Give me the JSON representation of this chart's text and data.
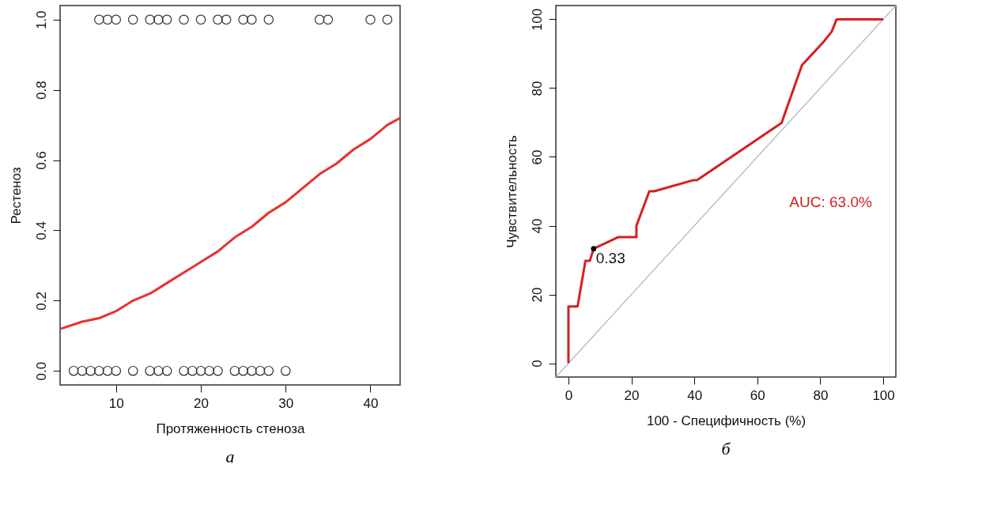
{
  "chart_data": [
    {
      "type": "scatter",
      "title": "а",
      "xlabel": "Протяженность стеноза",
      "ylabel": "Рестеноз",
      "xlim": [
        3.4,
        43.5
      ],
      "ylim": [
        -0.04,
        1.04
      ],
      "xticks": [
        10,
        20,
        30,
        40
      ],
      "yticks": [
        {
          "value": 0,
          "label": "0.0"
        },
        0.2,
        0.4,
        0.6,
        0.8,
        {
          "value": 1,
          "label": "1.0"
        }
      ],
      "grid": false,
      "series": [
        {
          "marker": "circle",
          "color": "#333333",
          "x": [
            8,
            9,
            10,
            12,
            14,
            15,
            16,
            18,
            20,
            22,
            23,
            25,
            26,
            28,
            34,
            35,
            40,
            42,
            5,
            6,
            7,
            8,
            9,
            10,
            12,
            14,
            15,
            16,
            18,
            19,
            20,
            21,
            22,
            24,
            25,
            26,
            27,
            28,
            30
          ],
          "values": [
            1,
            1,
            1,
            1,
            1,
            1,
            1,
            1,
            1,
            1,
            1,
            1,
            1,
            1,
            1,
            1,
            1,
            1,
            0,
            0,
            0,
            0,
            0,
            0,
            0,
            0,
            0,
            0,
            0,
            0,
            0,
            0,
            0,
            0,
            0,
            0,
            0,
            0,
            0
          ]
        },
        {
          "type": "line",
          "color": "#e8312f",
          "line_style": "solid",
          "x": [
            3.5,
            6,
            8,
            10,
            12,
            14,
            16,
            18,
            20,
            22,
            24,
            26,
            28,
            30,
            32,
            34,
            36,
            38,
            40,
            42,
            43.5
          ],
          "values": [
            0.12,
            0.14,
            0.15,
            0.17,
            0.2,
            0.22,
            0.25,
            0.28,
            0.31,
            0.34,
            0.38,
            0.41,
            0.45,
            0.48,
            0.52,
            0.56,
            0.59,
            0.63,
            0.66,
            0.7,
            0.72
          ]
        }
      ]
    },
    {
      "type": "line",
      "title": "б",
      "xlabel": "100 - Специфичность (%)",
      "ylabel": "Чувствительность",
      "xlim": [
        -4,
        104
      ],
      "ylim": [
        -4,
        104
      ],
      "xticks": [
        0,
        20,
        40,
        60,
        80,
        100
      ],
      "yticks": [
        0,
        20,
        40,
        60,
        80,
        100
      ],
      "grid": false,
      "annotations": [
        {
          "text": "0.33",
          "x": 8.0,
          "y": 33.3
        },
        "AUC: 63.0%"
      ],
      "series": [
        {
          "color": "#bebebe",
          "line_style": "solid",
          "x": [
            -4,
            104
          ],
          "values": [
            -4,
            104
          ]
        },
        {
          "color": "#d42020",
          "line_style": "solid",
          "x": [
            0,
            0,
            2.9,
            5.4,
            6.8,
            8.0,
            15.9,
            21.6,
            21.6,
            25.7,
            27.2,
            39.5,
            40.9,
            67.7,
            74.2,
            81.1,
            83.6,
            85.2,
            100
          ],
          "values": [
            0,
            16.5,
            16.5,
            29.8,
            29.8,
            33.3,
            36.7,
            36.7,
            40,
            50,
            50,
            53.2,
            53.3,
            69.9,
            86.7,
            93.5,
            96.4,
            100,
            100
          ]
        },
        {
          "type": "scatter",
          "marker": "circle",
          "color": "#000000",
          "x": [
            8.0
          ],
          "values": [
            33.3
          ]
        }
      ]
    }
  ]
}
